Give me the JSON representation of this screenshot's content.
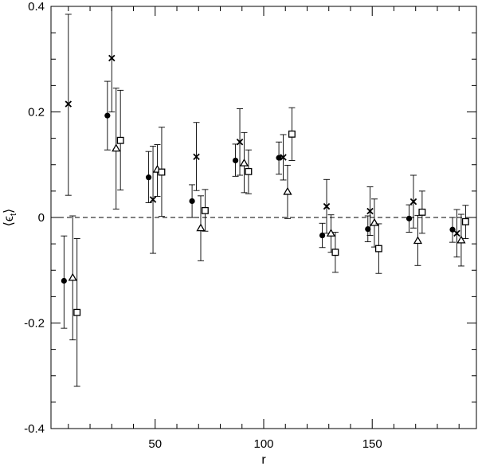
{
  "chart_data": {
    "type": "scatter",
    "title": "",
    "xlabel": "r",
    "ylabel": "⟨ϵ",
    "ylabel_sub": "t",
    "ylabel_close": "⟩",
    "xlim": [
      2,
      198
    ],
    "ylim": [
      -0.4,
      0.4
    ],
    "xticks": [
      {
        "value": 50,
        "label": "50"
      },
      {
        "value": 100,
        "label": "100"
      },
      {
        "value": 150,
        "label": "150"
      }
    ],
    "yticks": [
      {
        "value": -0.4,
        "label": "-0.4"
      },
      {
        "value": -0.2,
        "label": "-0.2"
      },
      {
        "value": 0,
        "label": "0"
      },
      {
        "value": 0.2,
        "label": "0.2"
      },
      {
        "value": 0.4,
        "label": "0.4"
      }
    ],
    "zero_line": 0,
    "grid": false,
    "legend": "none",
    "series": [
      {
        "marker": "circle",
        "points": [
          {
            "x": 8,
            "y": -0.12,
            "lo": -0.21,
            "hi": -0.035
          },
          {
            "x": 28,
            "y": 0.193,
            "lo": 0.128,
            "hi": 0.258
          },
          {
            "x": 47,
            "y": 0.076,
            "lo": 0.028,
            "hi": 0.125
          },
          {
            "x": 67,
            "y": 0.031,
            "lo": 0.0,
            "hi": 0.062
          },
          {
            "x": 87,
            "y": 0.108,
            "lo": 0.078,
            "hi": 0.139
          },
          {
            "x": 107,
            "y": 0.113,
            "lo": 0.082,
            "hi": 0.143
          },
          {
            "x": 127,
            "y": -0.034,
            "lo": -0.057,
            "hi": -0.011
          },
          {
            "x": 148,
            "y": -0.022,
            "lo": -0.046,
            "hi": 0.003
          },
          {
            "x": 167,
            "y": -0.002,
            "lo": -0.028,
            "hi": 0.024
          },
          {
            "x": 187,
            "y": -0.023,
            "lo": -0.047,
            "hi": 0.0
          }
        ]
      },
      {
        "marker": "cross",
        "points": [
          {
            "x": 10,
            "y": 0.215,
            "lo": 0.042,
            "hi": 0.385
          },
          {
            "x": 30,
            "y": 0.302,
            "lo": 0.2,
            "hi": 0.405
          },
          {
            "x": 49,
            "y": 0.034,
            "lo": -0.068,
            "hi": 0.135
          },
          {
            "x": 69,
            "y": 0.115,
            "lo": 0.051,
            "hi": 0.18
          },
          {
            "x": 89,
            "y": 0.143,
            "lo": 0.08,
            "hi": 0.206
          },
          {
            "x": 109,
            "y": 0.114,
            "lo": 0.071,
            "hi": 0.157
          },
          {
            "x": 129,
            "y": 0.021,
            "lo": -0.03,
            "hi": 0.072
          },
          {
            "x": 149,
            "y": 0.012,
            "lo": -0.034,
            "hi": 0.058
          },
          {
            "x": 169,
            "y": 0.03,
            "lo": -0.02,
            "hi": 0.08
          },
          {
            "x": 189,
            "y": -0.03,
            "lo": -0.075,
            "hi": 0.015
          }
        ]
      },
      {
        "marker": "triangle",
        "points": [
          {
            "x": 12,
            "y": -0.114,
            "lo": -0.232,
            "hi": 0.003
          },
          {
            "x": 32,
            "y": 0.131,
            "lo": 0.016,
            "hi": 0.245
          },
          {
            "x": 51,
            "y": 0.091,
            "lo": 0.04,
            "hi": 0.138
          },
          {
            "x": 71,
            "y": -0.02,
            "lo": -0.082,
            "hi": 0.041
          },
          {
            "x": 91,
            "y": 0.103,
            "lo": 0.047,
            "hi": 0.161
          },
          {
            "x": 111,
            "y": 0.049,
            "lo": -0.002,
            "hi": 0.099
          },
          {
            "x": 131,
            "y": -0.03,
            "lo": -0.066,
            "hi": 0.005
          },
          {
            "x": 151,
            "y": -0.01,
            "lo": -0.056,
            "hi": 0.035
          },
          {
            "x": 171,
            "y": -0.044,
            "lo": -0.091,
            "hi": 0.004
          },
          {
            "x": 191,
            "y": -0.043,
            "lo": -0.092,
            "hi": 0.006
          }
        ]
      },
      {
        "marker": "square",
        "points": [
          {
            "x": 14,
            "y": -0.18,
            "lo": -0.32,
            "hi": -0.04
          },
          {
            "x": 34,
            "y": 0.146,
            "lo": 0.052,
            "hi": 0.241
          },
          {
            "x": 53,
            "y": 0.086,
            "lo": 0.002,
            "hi": 0.171
          },
          {
            "x": 73,
            "y": 0.013,
            "lo": -0.026,
            "hi": 0.053
          },
          {
            "x": 93,
            "y": 0.087,
            "lo": 0.045,
            "hi": 0.128
          },
          {
            "x": 113,
            "y": 0.158,
            "lo": 0.108,
            "hi": 0.208
          },
          {
            "x": 133,
            "y": -0.066,
            "lo": -0.104,
            "hi": -0.028
          },
          {
            "x": 153,
            "y": -0.059,
            "lo": -0.106,
            "hi": -0.012
          },
          {
            "x": 173,
            "y": 0.01,
            "lo": -0.03,
            "hi": 0.05
          },
          {
            "x": 193,
            "y": -0.008,
            "lo": -0.04,
            "hi": 0.023
          }
        ]
      }
    ]
  }
}
